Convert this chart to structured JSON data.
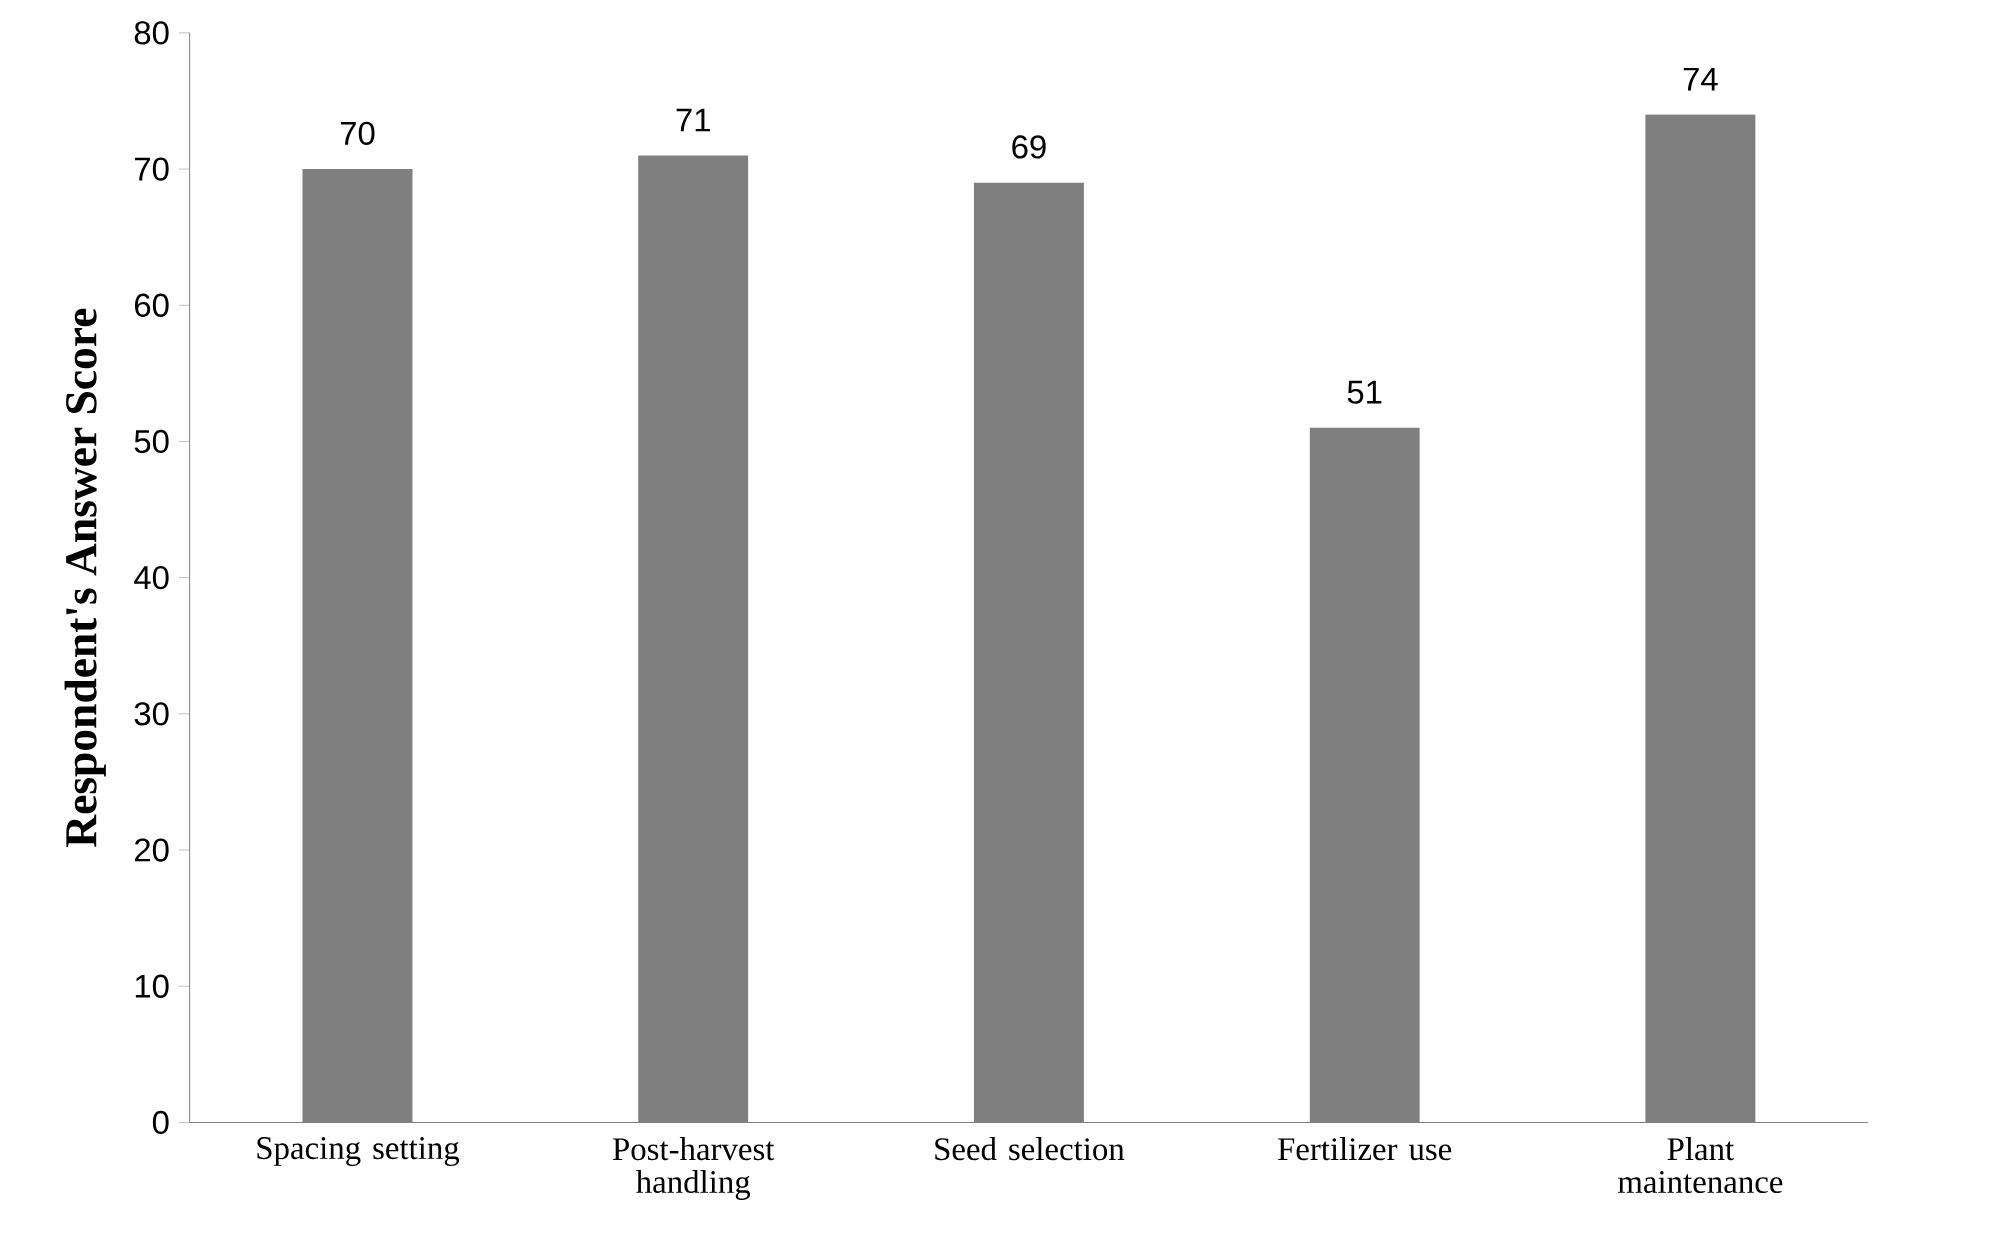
{
  "chart_data": {
    "type": "bar",
    "ylabel": "Respondent's Answer Score",
    "categories": [
      "Spacing setting",
      "Post-harvest handling",
      "Seed selection",
      "Fertilizer use",
      "Plant maintenance"
    ],
    "values": [
      70,
      71,
      69,
      51,
      74
    ],
    "color": "#7f7f7f",
    "ylim": [
      0,
      80
    ],
    "yticks": [
      0,
      10,
      20,
      30,
      40,
      50,
      60,
      70,
      80
    ],
    "data_labels": true
  }
}
